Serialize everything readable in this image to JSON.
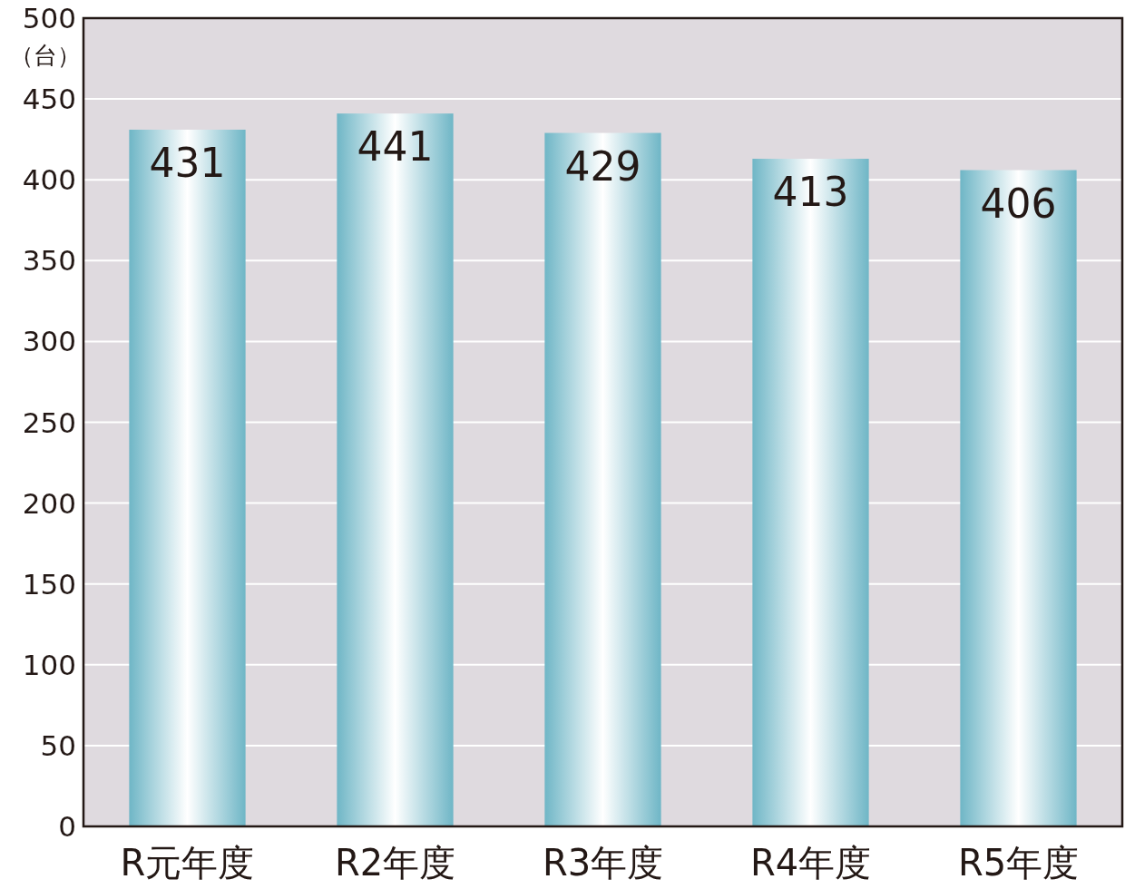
{
  "chart_data": {
    "type": "bar",
    "ylabel": "（台）",
    "categories": [
      "R元年度",
      "R2年度",
      "R3年度",
      "R4年度",
      "R5年度"
    ],
    "values": [
      431,
      441,
      429,
      413,
      406
    ],
    "color": "#6fb6c6",
    "ylim": [
      0,
      500
    ],
    "yticks": [
      0,
      50,
      100,
      150,
      200,
      250,
      300,
      350,
      400,
      450,
      500
    ],
    "grid": "y",
    "data_labels": true
  }
}
